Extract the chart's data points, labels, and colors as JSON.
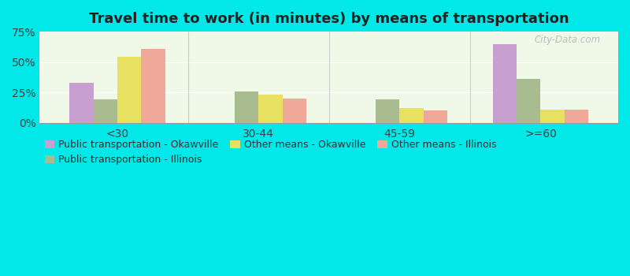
{
  "title": "Travel time to work (in minutes) by means of transportation",
  "categories": [
    "<30",
    "30-44",
    "45-59",
    ">=60"
  ],
  "series_order": [
    "Public transportation - Okawville",
    "Public transportation - Illinois",
    "Other means - Okawville",
    "Other means - Illinois"
  ],
  "series": {
    "Public transportation - Okawville": [
      33,
      0,
      0,
      65
    ],
    "Public transportation - Illinois": [
      19,
      26,
      19,
      36
    ],
    "Other means - Okawville": [
      54,
      23,
      12,
      11
    ],
    "Other means - Illinois": [
      61,
      20,
      10,
      11
    ]
  },
  "colors": {
    "Public transportation - Okawville": "#c8a0d0",
    "Public transportation - Illinois": "#a8bc90",
    "Other means - Okawville": "#e8e060",
    "Other means - Illinois": "#f0a898"
  },
  "ylim": [
    0,
    75
  ],
  "yticks": [
    0,
    25,
    50,
    75
  ],
  "ytick_labels": [
    "0%",
    "25%",
    "50%",
    "75%"
  ],
  "outer_background": "#00e8e8",
  "plot_bg_top": "#c8e8c0",
  "plot_bg_bottom": "#f0f8e8",
  "watermark": "City-Data.com",
  "title_fontsize": 13,
  "legend_fontsize": 9,
  "bar_width": 0.17
}
